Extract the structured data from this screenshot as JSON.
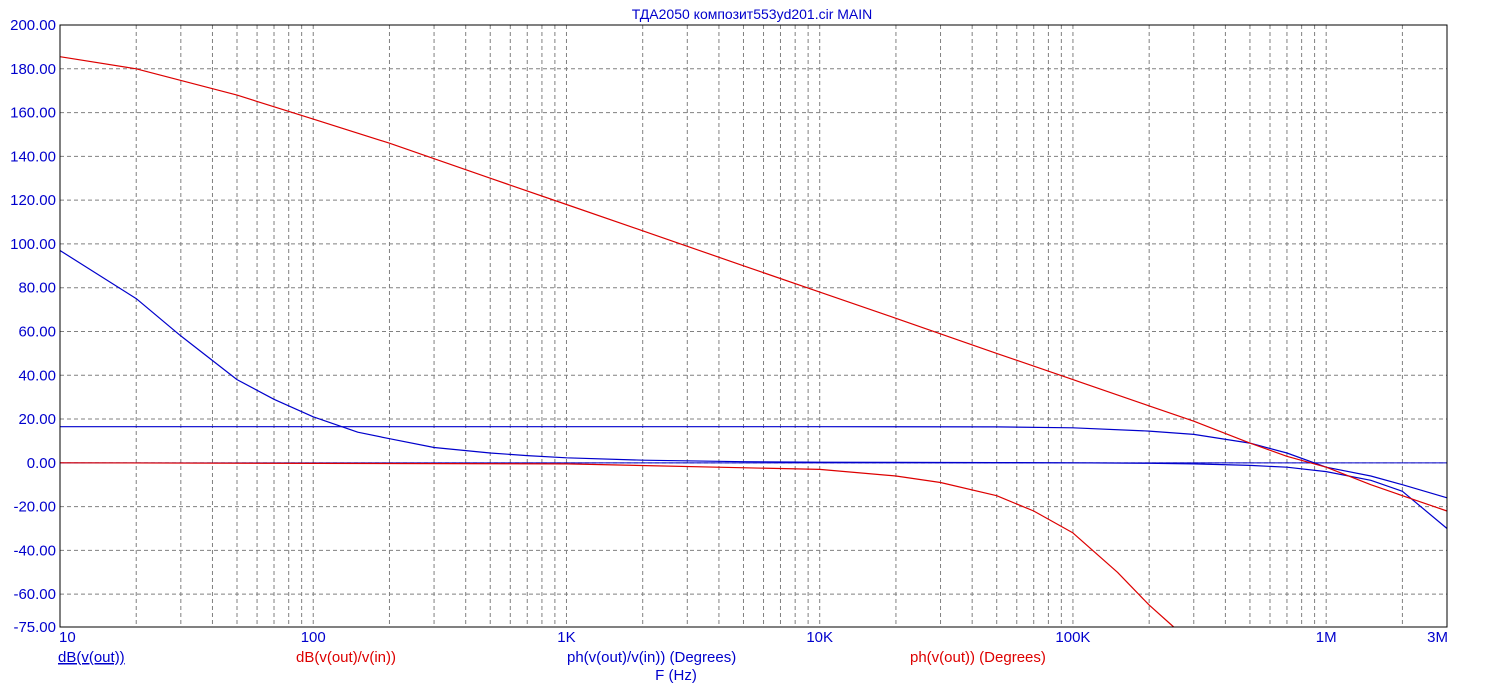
{
  "chart_data": {
    "type": "line",
    "title": "ТДА2050  композит553yd201.cir MAIN",
    "xlabel": "F (Hz)",
    "ylabel": "",
    "x_scale": "log",
    "xlim": [
      10,
      3000000
    ],
    "ylim": [
      -75,
      200
    ],
    "grid": true,
    "y_ticks": [
      "200.00",
      "180.00",
      "160.00",
      "140.00",
      "120.00",
      "100.00",
      "80.00",
      "60.00",
      "40.00",
      "20.00",
      "0.00",
      "-20.00",
      "-40.00",
      "-60.00",
      "-75.00"
    ],
    "y_tick_values": [
      200,
      180,
      160,
      140,
      120,
      100,
      80,
      60,
      40,
      20,
      0,
      -20,
      -40,
      -60,
      -75
    ],
    "x_ticks": [
      "10",
      "100",
      "1K",
      "10K",
      "100K",
      "1M",
      "3M"
    ],
    "x_tick_values": [
      10,
      100,
      1000,
      10000,
      100000,
      1000000,
      3000000
    ],
    "legend": [
      {
        "label": "dB(v(out))",
        "color": "#0000cc",
        "underline": true
      },
      {
        "label": "dB(v(out)/v(in))",
        "color": "#dd0000",
        "underline": false
      },
      {
        "label": "ph(v(out)/v(in)) (Degrees)",
        "color": "#0000cc",
        "underline": false
      },
      {
        "label": "ph(v(out)) (Degrees)",
        "color": "#dd0000",
        "underline": false
      }
    ],
    "series": [
      {
        "name": "dB(v(out))",
        "color": "#0000cc",
        "x": [
          10,
          20,
          30,
          50,
          70,
          100,
          150,
          200,
          300,
          500,
          700,
          1000,
          2000,
          5000,
          10000,
          20000,
          50000,
          100000,
          200000,
          300000,
          500000,
          700000,
          1000000,
          1500000,
          2000000,
          3000000
        ],
        "y": [
          97,
          75,
          58,
          38,
          29,
          21,
          14,
          11,
          7,
          4.5,
          3.3,
          2.3,
          1.2,
          0.5,
          0.3,
          0.2,
          0.1,
          0,
          -0.2,
          -0.5,
          -1.2,
          -2,
          -4,
          -8,
          -13,
          -30
        ]
      },
      {
        "name": "dB(v(out)/v(in))",
        "color": "#dd0000",
        "x": [
          10,
          1000,
          10000,
          20000,
          30000,
          50000,
          70000,
          100000,
          150000,
          200000,
          250000
        ],
        "y": [
          0,
          -0.5,
          -3,
          -6,
          -9,
          -15,
          -22,
          -32,
          -50,
          -65,
          -75
        ]
      },
      {
        "name": "ph(v(out)/v(in)) (Degrees)",
        "color": "#0000cc",
        "x": [
          10,
          1000,
          10000,
          50000,
          100000,
          200000,
          300000,
          500000,
          700000,
          1000000,
          1500000,
          2000000,
          3000000
        ],
        "y": [
          16.5,
          16.5,
          16.5,
          16.4,
          16,
          14.5,
          13,
          9,
          4.5,
          -2,
          -6,
          -10,
          -16
        ]
      },
      {
        "name": "ph(v(out)) (Degrees)",
        "color": "#dd0000",
        "x": [
          10,
          20,
          50,
          100,
          200,
          500,
          1000,
          2000,
          5000,
          10000,
          20000,
          50000,
          100000,
          200000,
          300000,
          500000,
          700000,
          1000000,
          1500000,
          2000000,
          3000000
        ],
        "y": [
          185.5,
          180,
          168,
          157,
          146,
          130,
          118,
          106,
          90,
          78,
          66,
          50,
          38,
          26,
          19,
          9,
          3,
          -2,
          -10,
          -15,
          -22
        ]
      }
    ],
    "baseline": {
      "y": 0,
      "color": "#0000cc"
    }
  }
}
